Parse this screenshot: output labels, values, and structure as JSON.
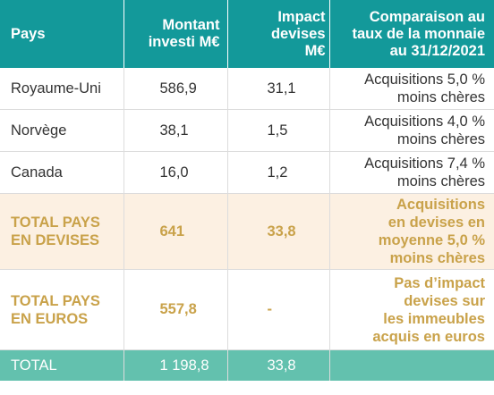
{
  "headers": {
    "pays": "Pays",
    "montant": [
      "Montant",
      "investi M€"
    ],
    "impact": [
      "Impact",
      "devises",
      "M€"
    ],
    "comparaison": [
      "Comparaison au",
      "taux de la monnaie",
      "au 31/12/2021"
    ]
  },
  "rows": [
    {
      "pays": "Royaume-Uni",
      "montant": "586,9",
      "impact": "31,1",
      "comparaison": [
        "Acquisitions 5,0 %",
        "moins chères"
      ]
    },
    {
      "pays": "Norvège",
      "montant": "38,1",
      "impact": "1,5",
      "comparaison": [
        "Acquisitions 4,0 %",
        "moins chères"
      ]
    },
    {
      "pays": "Canada",
      "montant": "16,0",
      "impact": "1,2",
      "comparaison": [
        "Acquisitions 7,4 %",
        "moins chères"
      ]
    }
  ],
  "total_devises": {
    "pays": [
      "TOTAL PAYS",
      "EN DEVISES"
    ],
    "montant": "641",
    "impact": "33,8",
    "comparaison": [
      "Acquisitions",
      "en devises en",
      "moyenne 5,0 %",
      "moins chères"
    ]
  },
  "total_euros": {
    "pays": [
      "TOTAL PAYS",
      "EN EUROS"
    ],
    "montant": "557,8",
    "impact": "-",
    "comparaison": [
      "Pas d’impact",
      "devises sur",
      "les immeubles",
      "acquis en euros"
    ]
  },
  "total": {
    "pays": "TOTAL",
    "montant": "1 198,8",
    "impact": "33,8"
  },
  "colors": {
    "header": "#13999a",
    "total_row": "#63c1ae",
    "highlight_bg": "#fcf0e2",
    "highlight_text": "#c9a24a"
  }
}
